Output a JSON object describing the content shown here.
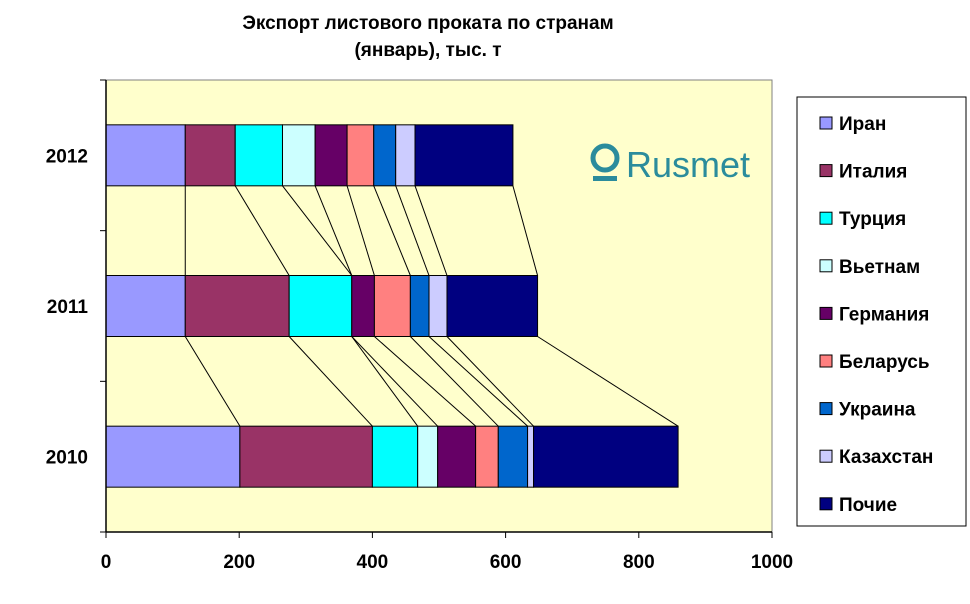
{
  "chart_data": {
    "type": "bar",
    "orientation": "horizontal-stacked",
    "title": [
      "Экспорт листового проката по странам",
      "(январь), тыс. т"
    ],
    "categories": [
      "2012",
      "2011",
      "2010"
    ],
    "series": [
      {
        "name": "Иран",
        "color": "#9999ff",
        "values": [
          119,
          119,
          201
        ]
      },
      {
        "name": "Италия",
        "color": "#993366",
        "values": [
          75,
          156,
          199
        ]
      },
      {
        "name": "Турция",
        "color": "#00ffff",
        "values": [
          71,
          94,
          68
        ]
      },
      {
        "name": "Вьетнам",
        "color": "#ccffff",
        "values": [
          49,
          0,
          30
        ]
      },
      {
        "name": "Германия",
        "color": "#660066",
        "values": [
          48,
          34,
          57
        ]
      },
      {
        "name": "Беларусь",
        "color": "#ff8080",
        "values": [
          40,
          54,
          34
        ]
      },
      {
        "name": "Украина",
        "color": "#0066cc",
        "values": [
          33,
          28,
          44
        ]
      },
      {
        "name": "Казахстан",
        "color": "#ccccff",
        "values": [
          29,
          27,
          9
        ]
      },
      {
        "name": "Почие",
        "color": "#000080",
        "values": [
          147,
          136,
          217
        ]
      }
    ],
    "xlim": [
      0,
      1000
    ],
    "xticks": [
      "0",
      "200",
      "400",
      "600",
      "800",
      "1000"
    ],
    "series_lines": true,
    "legend": "right",
    "plot_background": "#ffffcc"
  },
  "logo": {
    "text": "Rusmet",
    "color": "#2b8c9c"
  }
}
